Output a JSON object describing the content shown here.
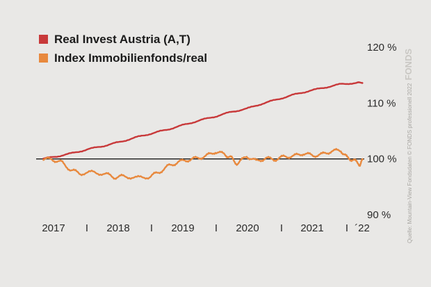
{
  "chart_data": {
    "type": "line",
    "legend_position": "top-left",
    "series": [
      {
        "name": "Real Invest Austria (A,T)",
        "color": "#c8393a",
        "x": [
          2017.0,
          2017.25,
          2017.5,
          2017.75,
          2018.0,
          2018.25,
          2018.5,
          2018.75,
          2019.0,
          2019.25,
          2019.5,
          2019.75,
          2020.0,
          2020.25,
          2020.5,
          2020.75,
          2021.0,
          2021.25,
          2021.5,
          2021.75,
          2022.0,
          2022.1
        ],
        "values": [
          100.0,
          100.5,
          101.1,
          101.8,
          102.4,
          103.1,
          103.9,
          104.6,
          105.3,
          106.1,
          106.9,
          107.6,
          108.4,
          109.0,
          109.9,
          110.7,
          111.5,
          112.2,
          112.8,
          113.4,
          113.6,
          113.7
        ]
      },
      {
        "name": "Index Immobilienfonds/real",
        "color": "#e8893e",
        "x": [
          2017.0,
          2017.15,
          2017.3,
          2017.45,
          2017.6,
          2017.8,
          2018.0,
          2018.15,
          2018.3,
          2018.5,
          2018.7,
          2018.85,
          2019.0,
          2019.15,
          2019.3,
          2019.45,
          2019.6,
          2019.75,
          2019.9,
          2020.0,
          2020.1,
          2020.25,
          2020.4,
          2020.55,
          2020.7,
          2020.85,
          2021.0,
          2021.15,
          2021.3,
          2021.45,
          2021.6,
          2021.75,
          2021.85,
          2021.95,
          2022.05,
          2022.1
        ],
        "values": [
          100.0,
          99.9,
          99.4,
          98.0,
          97.4,
          97.6,
          97.3,
          96.7,
          96.9,
          96.6,
          96.8,
          97.6,
          98.7,
          99.4,
          99.8,
          100.1,
          100.5,
          101.3,
          100.8,
          100.2,
          99.1,
          100.5,
          99.6,
          100.1,
          99.9,
          100.4,
          100.5,
          101.0,
          100.6,
          100.8,
          101.4,
          101.5,
          100.2,
          99.8,
          99.0,
          99.8
        ]
      }
    ],
    "reference_line": 100,
    "yticks": [
      "90 %",
      "100 %",
      "110 %",
      "120 %"
    ],
    "ytick_values": [
      90,
      100,
      110,
      120
    ],
    "xticks": [
      "2017",
      "I",
      "2018",
      "I",
      "2019",
      "I",
      "2020",
      "I",
      "2021",
      "I",
      "´22"
    ],
    "xtick_values": [
      2017.0,
      2017.5,
      2018.0,
      2018.5,
      2019.0,
      2019.5,
      2020.0,
      2020.5,
      2021.0,
      2021.5,
      2022.0
    ],
    "xlim": [
      2016.75,
      2022.15
    ],
    "ylim": [
      90,
      120
    ],
    "grid": false
  },
  "brand": "FONDS",
  "source": "Quelle: Mountain-View Fondsdaten © FONDS professionell 2022"
}
